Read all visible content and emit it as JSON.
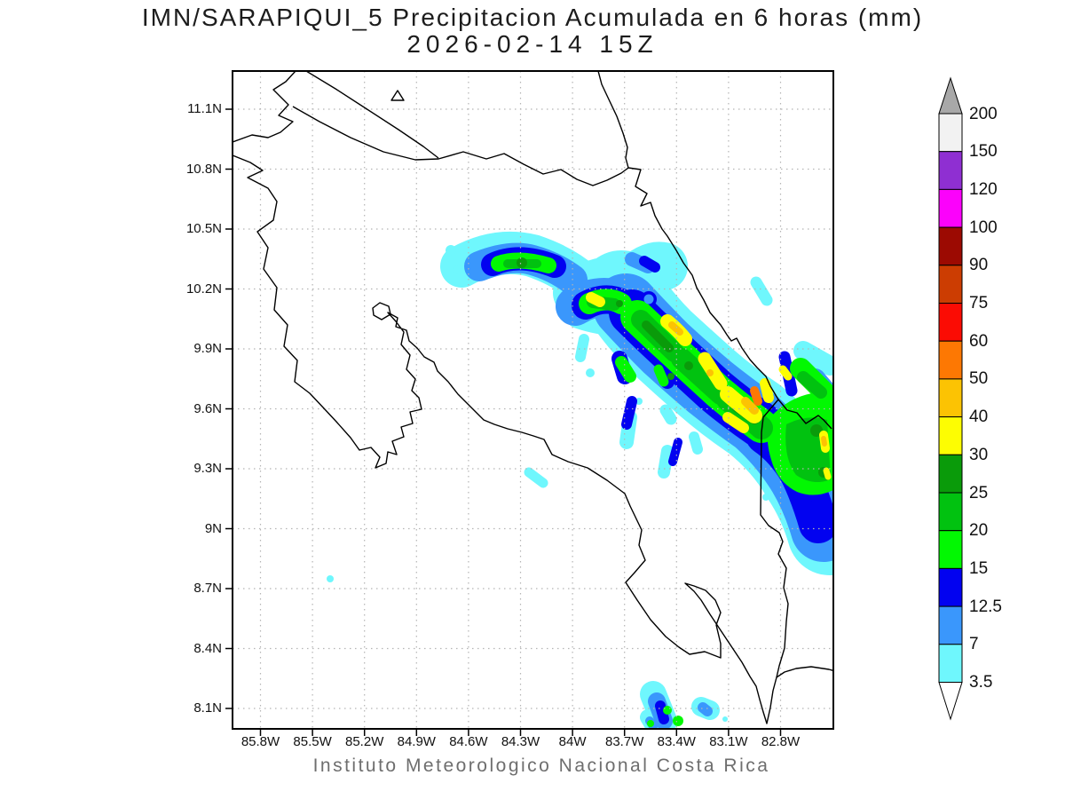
{
  "title": {
    "line1": "IMN/SARAPIQUI_5 Precipitacion Acumulada en 6 horas (mm)",
    "line2": "2026-02-14 15Z"
  },
  "footer": "Instituto Meteorologico Nacional Costa Rica",
  "axes": {
    "y_ticks": [
      "11.1N",
      "10.8N",
      "10.5N",
      "10.2N",
      "9.9N",
      "9.6N",
      "9.3N",
      "9N",
      "8.7N",
      "8.4N",
      "8.1N"
    ],
    "x_ticks": [
      "85.8W",
      "85.5W",
      "85.2W",
      "84.9W",
      "84.6W",
      "84.3W",
      "84W",
      "83.7W",
      "83.4W",
      "83.1W",
      "82.8W"
    ]
  },
  "colorbar": {
    "tick_labels": [
      "200",
      "150",
      "120",
      "100",
      "90",
      "75",
      "60",
      "50",
      "40",
      "30",
      "25",
      "20",
      "15",
      "12.5",
      "7",
      "3.5"
    ],
    "overflow_arrow_color": "#a8a8a8",
    "underflow_arrow_color": "#ffffff"
  },
  "palette": {
    "3.5": "#6ff7fd",
    "7": "#3a97fc",
    "12.5": "#0202f0",
    "15": "#02f802",
    "20": "#01c210",
    "25": "#0a9b0a",
    "30": "#fdfd02",
    "40": "#fcc303",
    "50": "#fd7803",
    "60": "#fb0c04",
    "75": "#cc3d02",
    "90": "#9c0a02",
    "100": "#fb02fb",
    "120": "#8f2fd2",
    "150": "#f2f2f2"
  },
  "map": {
    "gridline_color": "#b4b4b4",
    "coastline_color": "#000000",
    "frame_color": "#000000",
    "background": "#ffffff"
  },
  "chart_data": {
    "type": "map",
    "region": "Costa Rica",
    "quantity": "6-hour accumulated precipitation (mm)",
    "contour_levels_mm": [
      3.5,
      7,
      12.5,
      15,
      20,
      25,
      30,
      40,
      50,
      60,
      75,
      90,
      100,
      120,
      150,
      200
    ],
    "max_filled_level_mm": 50,
    "lon_range_w": [
      85.8,
      82.8
    ],
    "lat_range_n": [
      8.1,
      11.1
    ]
  }
}
